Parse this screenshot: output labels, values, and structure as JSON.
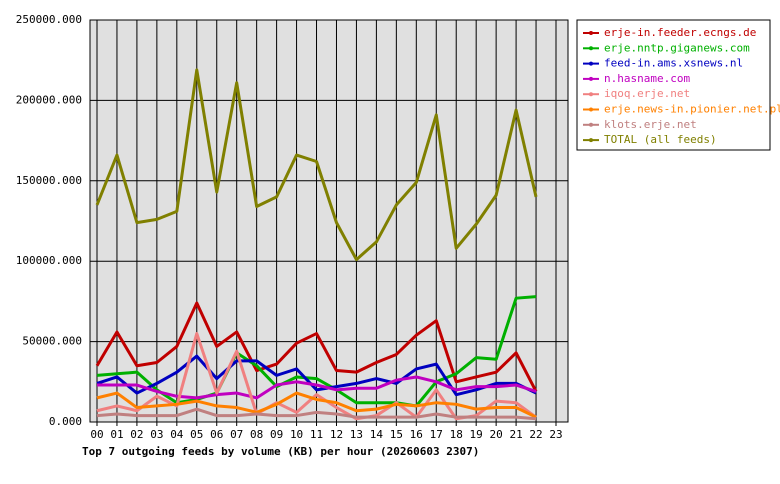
{
  "chart_data": {
    "type": "line",
    "x_label": "Top 7 outgoing feeds by volume (KB) per hour (20260603 2307)",
    "categories": [
      "00",
      "01",
      "02",
      "03",
      "04",
      "05",
      "06",
      "07",
      "08",
      "09",
      "10",
      "11",
      "12",
      "13",
      "14",
      "15",
      "16",
      "17",
      "18",
      "19",
      "20",
      "21",
      "22",
      "23"
    ],
    "ylim": [
      0,
      250000
    ],
    "yticks": [
      {
        "value": 0,
        "label": "0.000"
      },
      {
        "value": 50000,
        "label": "50000.000"
      },
      {
        "value": 100000,
        "label": "100000.000"
      },
      {
        "value": 150000,
        "label": "150000.000"
      },
      {
        "value": 200000,
        "label": "200000.000"
      },
      {
        "value": 250000,
        "label": "250000.000"
      }
    ],
    "grid": true,
    "legend": "outside-right",
    "series": [
      {
        "name": "erje-in.feeder.ecngs.de",
        "color": "#c00000",
        "values": [
          35000,
          56000,
          35000,
          37000,
          47000,
          74000,
          47000,
          56000,
          32000,
          36000,
          49000,
          55000,
          32000,
          31000,
          37000,
          42000,
          54000,
          63000,
          25000,
          28000,
          31000,
          43000,
          19000,
          null
        ]
      },
      {
        "name": "erje.nntp.giganews.com",
        "color": "#00b000",
        "values": [
          29000,
          30000,
          31000,
          20000,
          12000,
          14000,
          18000,
          43000,
          35000,
          22000,
          28000,
          27000,
          20000,
          12000,
          12000,
          12000,
          10000,
          25000,
          30000,
          40000,
          39000,
          77000,
          78000,
          null
        ]
      },
      {
        "name": "feed-in.ams.xsnews.nl",
        "color": "#0000c0",
        "values": [
          24000,
          28000,
          18000,
          24000,
          31000,
          41000,
          27000,
          38000,
          38000,
          29000,
          33000,
          20000,
          22000,
          24000,
          27000,
          24000,
          33000,
          36000,
          17000,
          20000,
          24000,
          24000,
          18000,
          null
        ]
      },
      {
        "name": "n.hasname.com",
        "color": "#c000c0",
        "values": [
          23000,
          23000,
          23000,
          19000,
          16000,
          15000,
          17000,
          18000,
          15000,
          23000,
          25000,
          23000,
          20000,
          21000,
          21000,
          26000,
          28000,
          25000,
          20000,
          22000,
          22000,
          23000,
          19000,
          null
        ]
      },
      {
        "name": "iqoq.erje.net",
        "color": "#f08080",
        "values": [
          7000,
          10000,
          7000,
          16000,
          10000,
          55000,
          18000,
          44000,
          5000,
          12000,
          6000,
          17000,
          9000,
          2000,
          4000,
          12000,
          3000,
          20000,
          2000,
          4000,
          13000,
          12000,
          3000,
          null
        ]
      },
      {
        "name": "erje.news-in.pionier.net.pl",
        "color": "#ff8000",
        "values": [
          15000,
          18000,
          9000,
          10000,
          11000,
          13000,
          10000,
          9000,
          6000,
          11000,
          18000,
          14000,
          12000,
          7000,
          8000,
          11000,
          10000,
          12000,
          11000,
          8000,
          9000,
          9000,
          3000,
          null
        ]
      },
      {
        "name": "klots.erje.net",
        "color": "#c08080",
        "values": [
          4000,
          5000,
          4000,
          4000,
          4000,
          8000,
          4000,
          4000,
          5000,
          4000,
          4000,
          6000,
          5000,
          3000,
          3000,
          3000,
          3000,
          5000,
          3000,
          3000,
          3000,
          3000,
          2000,
          null
        ]
      },
      {
        "name": "TOTAL (all feeds)",
        "color": "#808000",
        "values": [
          135000,
          166000,
          124000,
          126000,
          131000,
          219000,
          143000,
          211000,
          134000,
          140000,
          166000,
          162000,
          124000,
          101000,
          112000,
          135000,
          149000,
          191000,
          108000,
          123000,
          141000,
          194000,
          140000,
          null
        ]
      }
    ]
  }
}
